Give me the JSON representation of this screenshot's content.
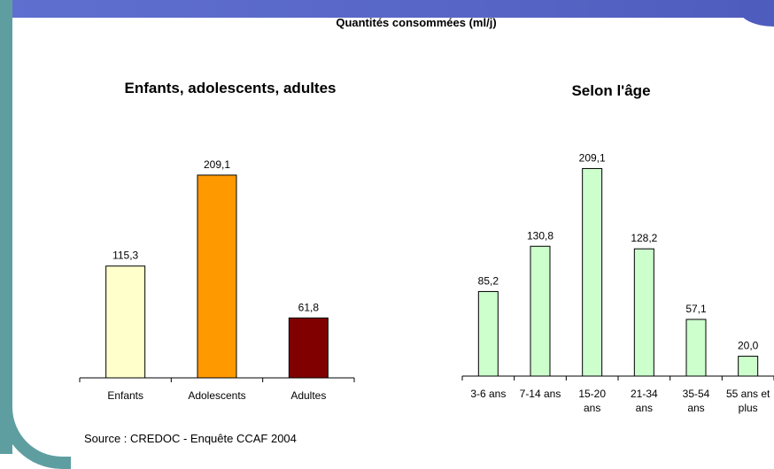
{
  "main_title": "Quantités consommées (ml/j)",
  "source": "Source : CREDOC - Enquête CCAF 2004",
  "chart_data": [
    {
      "type": "bar",
      "title": "Enfants, adolescents, adultes",
      "categories": [
        [
          "Enfants"
        ],
        [
          "Adolescents"
        ],
        [
          "Adultes"
        ]
      ],
      "values": [
        115.3,
        209.1,
        61.8
      ],
      "value_labels": [
        "115,3",
        "209,1",
        "61,8"
      ],
      "colors": [
        "#ffffcc",
        "#ff9900",
        "#800000"
      ],
      "ylim": [
        0,
        230
      ],
      "grid": false,
      "legend": "none"
    },
    {
      "type": "bar",
      "title": "Selon l'âge",
      "categories": [
        [
          "3-6 ans"
        ],
        [
          "7-14 ans"
        ],
        [
          "15-20",
          "ans"
        ],
        [
          "21-34",
          "ans"
        ],
        [
          "35-54",
          "ans"
        ],
        [
          "55 ans et",
          "plus"
        ]
      ],
      "values": [
        85.2,
        130.8,
        209.1,
        128.2,
        57.1,
        20.0
      ],
      "value_labels": [
        "85,2",
        "130,8",
        "209,1",
        "128,2",
        "57,1",
        "20,0"
      ],
      "colors": [
        "#ccffcc",
        "#ccffcc",
        "#ccffcc",
        "#ccffcc",
        "#ccffcc",
        "#ccffcc"
      ],
      "ylim": [
        0,
        230
      ],
      "grid": false,
      "legend": "none"
    }
  ]
}
